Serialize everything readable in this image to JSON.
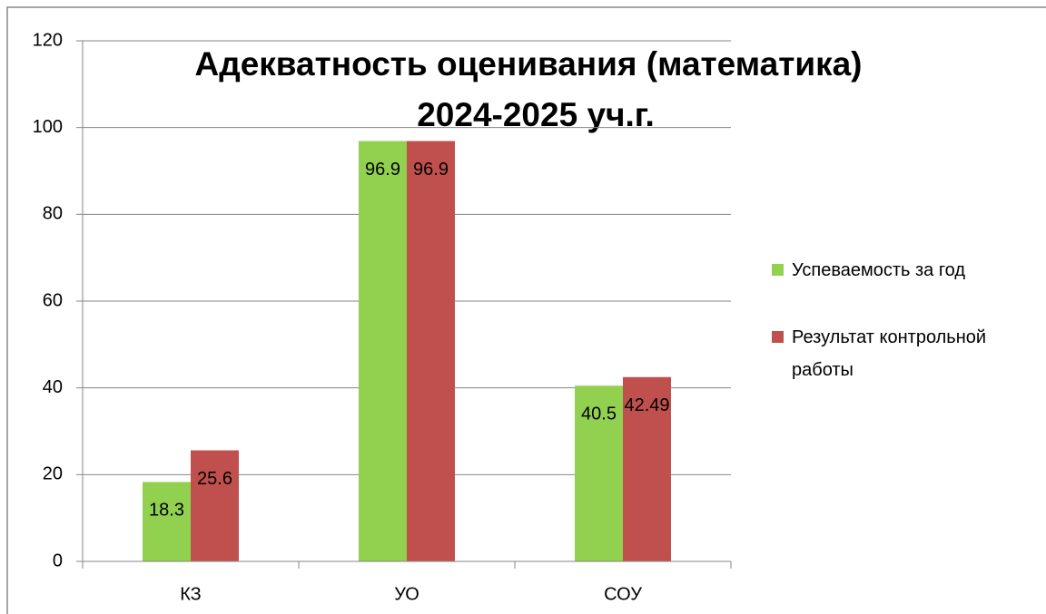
{
  "chart_data": {
    "type": "bar",
    "title": [
      "Адекватность оценивания (математика)",
      "2024-2025 уч.г."
    ],
    "categories": [
      "КЗ",
      "УО",
      "СОУ"
    ],
    "series": [
      {
        "name": "Успеваемость за год",
        "color": "#92d050",
        "values": [
          18.3,
          96.9,
          40.5
        ]
      },
      {
        "name": "Результат контрольной работы",
        "color": "#c0504d",
        "values": [
          25.6,
          96.9,
          42.49
        ]
      }
    ],
    "ylim": [
      0,
      120
    ],
    "yticks": [
      0,
      20,
      40,
      60,
      80,
      100,
      120
    ],
    "grid": true,
    "legend": "right"
  }
}
